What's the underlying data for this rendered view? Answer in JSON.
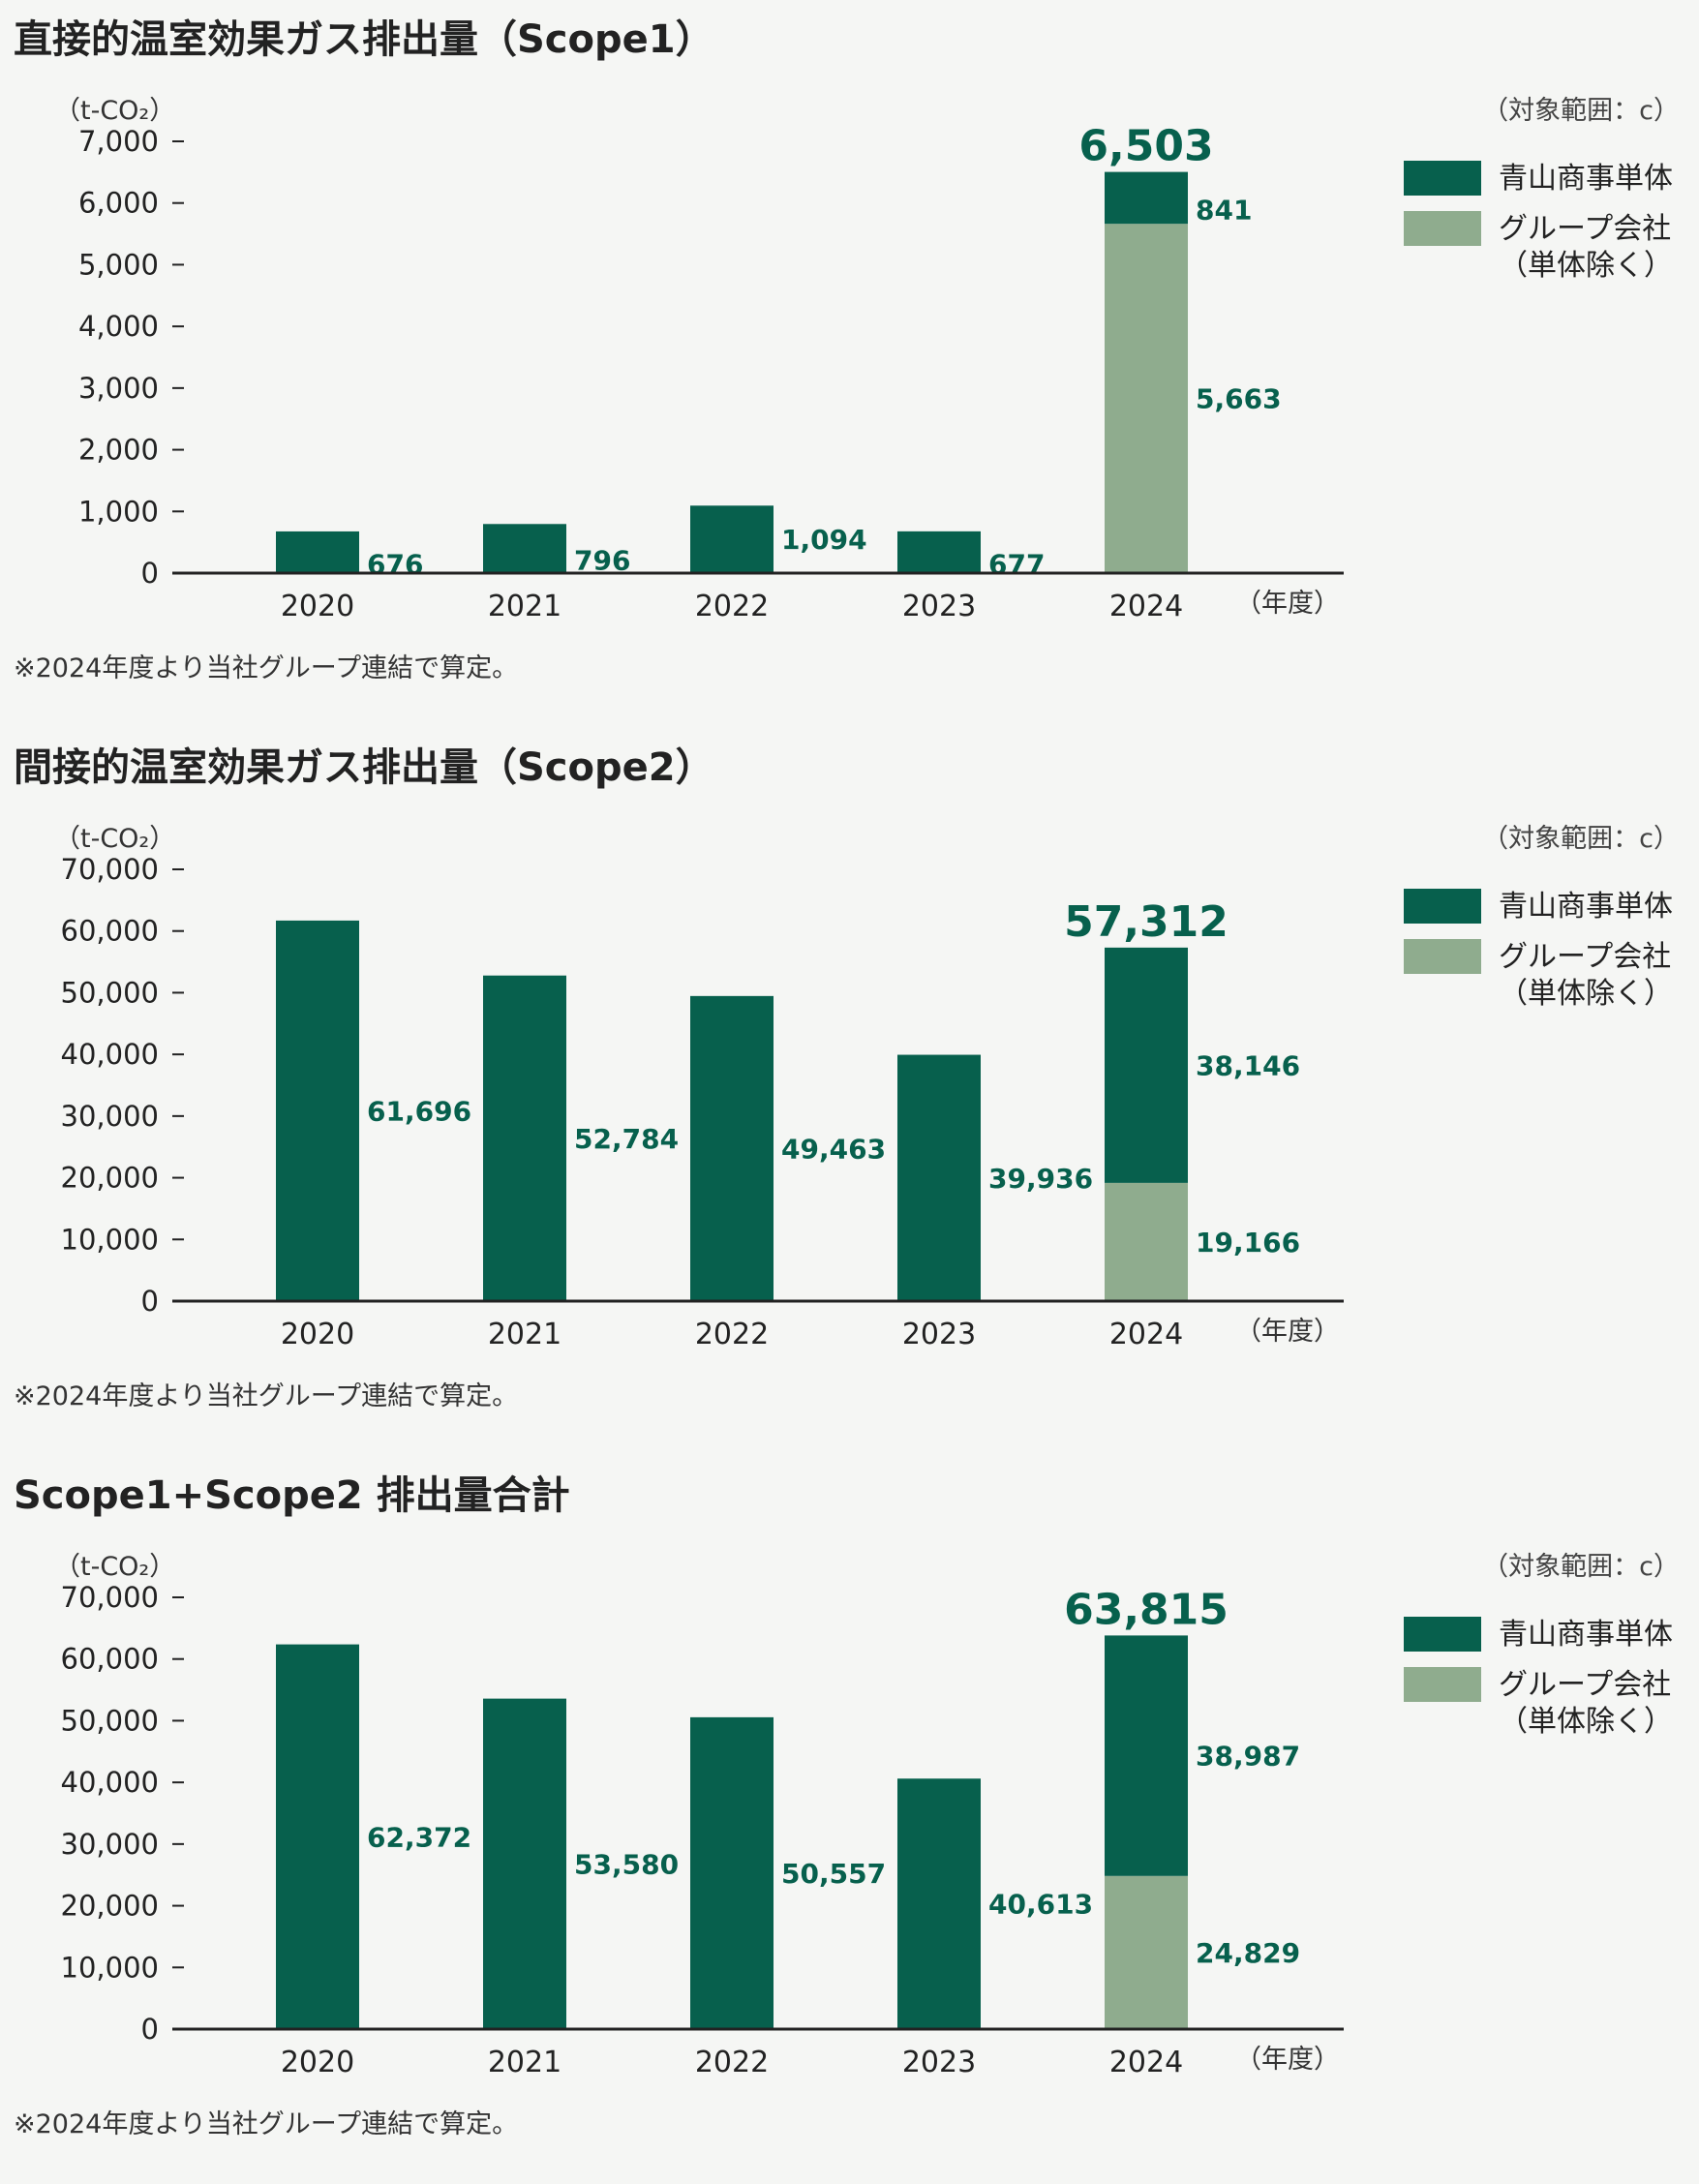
{
  "colors": {
    "single": "#07604d",
    "group": "#8fac8e",
    "label": "#07604d",
    "axis": "#222222"
  },
  "legend": {
    "single": "青山商事単体",
    "group": "グループ会社",
    "group_note": "（単体除く）"
  },
  "unit_label": "（t-CO₂）",
  "scope_label": "（対象範囲：c）",
  "footnote": "※2024年度より当社グループ連結で算定。",
  "chart_data": [
    {
      "type": "bar",
      "stacked": true,
      "title": "直接的温室効果ガス排出量（Scope1）",
      "ylabel": "（t-CO₂）",
      "xlabel": "（年度）",
      "ylim": [
        0,
        7000
      ],
      "yticks": [
        "0",
        "1,000",
        "2,000",
        "3,000",
        "4,000",
        "5,000",
        "6,000",
        "7,000"
      ],
      "categories": [
        "2020",
        "2021",
        "2022",
        "2023",
        "2024"
      ],
      "series": [
        {
          "name": "グループ会社（単体除く）",
          "key": "group",
          "values": [
            null,
            null,
            null,
            null,
            5663
          ],
          "labels": [
            "",
            "",
            "",
            "",
            "5,663"
          ]
        },
        {
          "name": "青山商事単体",
          "key": "single",
          "values": [
            676,
            796,
            1094,
            677,
            841
          ],
          "labels": [
            "676",
            "796",
            "1,094",
            "677",
            "841"
          ]
        }
      ],
      "total_2024": 6503,
      "total_label": "6,503"
    },
    {
      "type": "bar",
      "stacked": true,
      "title": "間接的温室効果ガス排出量（Scope2）",
      "ylabel": "（t-CO₂）",
      "xlabel": "（年度）",
      "ylim": [
        0,
        70000
      ],
      "yticks": [
        "0",
        "10,000",
        "20,000",
        "30,000",
        "40,000",
        "50,000",
        "60,000",
        "70,000"
      ],
      "categories": [
        "2020",
        "2021",
        "2022",
        "2023",
        "2024"
      ],
      "series": [
        {
          "name": "グループ会社（単体除く）",
          "key": "group",
          "values": [
            null,
            null,
            null,
            null,
            19166
          ],
          "labels": [
            "",
            "",
            "",
            "",
            "19,166"
          ]
        },
        {
          "name": "青山商事単体",
          "key": "single",
          "values": [
            61696,
            52784,
            49463,
            39936,
            38146
          ],
          "labels": [
            "61,696",
            "52,784",
            "49,463",
            "39,936",
            "38,146"
          ]
        }
      ],
      "total_2024": 57312,
      "total_label": "57,312"
    },
    {
      "type": "bar",
      "stacked": true,
      "title": "Scope1+Scope2 排出量合計",
      "ylabel": "（t-CO₂）",
      "xlabel": "（年度）",
      "ylim": [
        0,
        70000
      ],
      "yticks": [
        "0",
        "10,000",
        "20,000",
        "30,000",
        "40,000",
        "50,000",
        "60,000",
        "70,000"
      ],
      "categories": [
        "2020",
        "2021",
        "2022",
        "2023",
        "2024"
      ],
      "series": [
        {
          "name": "グループ会社（単体除く）",
          "key": "group",
          "values": [
            null,
            null,
            null,
            null,
            24829
          ],
          "labels": [
            "",
            "",
            "",
            "",
            "24,829"
          ]
        },
        {
          "name": "青山商事単体",
          "key": "single",
          "values": [
            62372,
            53580,
            50557,
            40613,
            38987
          ],
          "labels": [
            "62,372",
            "53,580",
            "50,557",
            "40,613",
            "38,987"
          ]
        }
      ],
      "total_2024": 63815,
      "total_label": "63,815"
    }
  ]
}
